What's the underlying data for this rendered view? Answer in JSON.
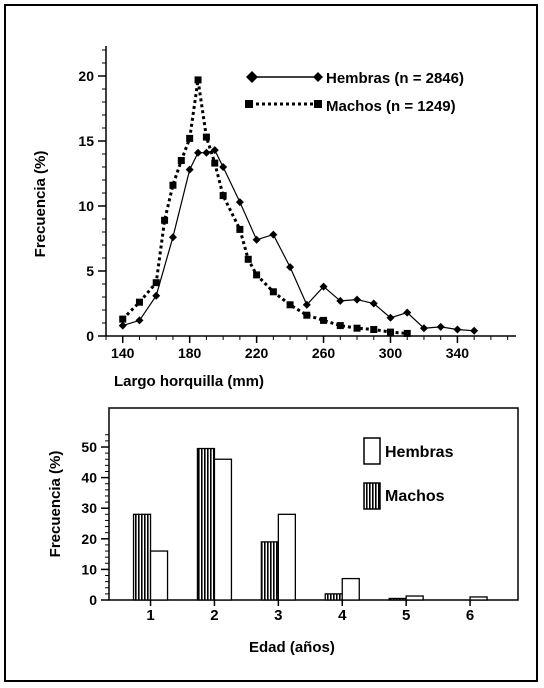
{
  "chart_data": [
    {
      "type": "line",
      "xlabel": "Largo horquilla (mm)",
      "ylabel": "Frecuencia (%)",
      "xlim": [
        130,
        375
      ],
      "ylim": [
        0,
        20
      ],
      "xticks": [
        140,
        180,
        220,
        260,
        300,
        340
      ],
      "yticks": [
        0,
        5,
        10,
        15,
        20
      ],
      "legend": "top-right",
      "series": [
        {
          "name": "Hembras (n = 2846)",
          "line": "solid",
          "marker": "diamond",
          "color": "#000000",
          "x": [
            140,
            150,
            160,
            170,
            180,
            185,
            190,
            195,
            200,
            210,
            220,
            230,
            240,
            250,
            260,
            270,
            280,
            290,
            300,
            310,
            320,
            330,
            340,
            350
          ],
          "y": [
            0.8,
            1.2,
            3.1,
            7.6,
            12.8,
            14.1,
            14.1,
            14.3,
            13.0,
            10.3,
            7.4,
            7.8,
            5.3,
            2.4,
            3.8,
            2.7,
            2.8,
            2.5,
            1.4,
            1.8,
            0.6,
            0.7,
            0.5,
            0.4
          ]
        },
        {
          "name": "Machos (n = 1249)",
          "line": "dotted",
          "marker": "square",
          "color": "#000000",
          "x": [
            140,
            150,
            160,
            165,
            170,
            175,
            180,
            185,
            190,
            195,
            200,
            210,
            215,
            220,
            230,
            240,
            250,
            260,
            270,
            280,
            290,
            300,
            310
          ],
          "y": [
            1.3,
            2.6,
            4.1,
            8.9,
            11.6,
            13.5,
            15.2,
            19.7,
            15.3,
            13.3,
            10.8,
            8.2,
            5.9,
            4.7,
            3.4,
            2.4,
            1.6,
            1.2,
            0.8,
            0.6,
            0.5,
            0.3,
            0.2
          ]
        }
      ]
    },
    {
      "type": "bar",
      "xlabel": "Edad (años)",
      "ylabel": "Frecuencia (%)",
      "ylim": [
        0,
        56
      ],
      "yticks": [
        0,
        10,
        20,
        30,
        40,
        50
      ],
      "categories": [
        "1",
        "2",
        "3",
        "4",
        "5",
        "6"
      ],
      "legend": "top-right",
      "series": [
        {
          "name": "Machos",
          "pattern": "vertical-stripes",
          "values": [
            28,
            49.5,
            19,
            2,
            0.5,
            0
          ]
        },
        {
          "name": "Hembras",
          "pattern": "white",
          "values": [
            16,
            46,
            28,
            7,
            1.3,
            1
          ]
        }
      ]
    }
  ]
}
